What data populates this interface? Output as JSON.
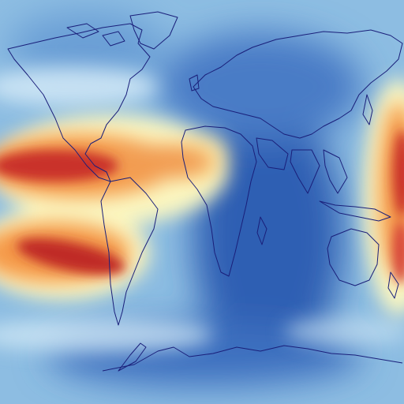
{
  "map": {
    "projection": "equirectangular",
    "field_type": "diverging-heat-field",
    "colormap": {
      "low": "#2f5fb3",
      "mid_low": "#8fc0e3",
      "mid": "#fbf6c0",
      "mid_high": "#f59a4a",
      "high": "#b01c1c"
    },
    "coastline_color": "#1a1f7a",
    "warm_regions": [
      "tropical-pacific-north",
      "tropical-atlantic",
      "south-pacific-convergence",
      "western-pacific"
    ],
    "cool_regions": [
      "atlantic-indian-ocean",
      "southern-ocean",
      "eurasia"
    ],
    "annotations": []
  }
}
